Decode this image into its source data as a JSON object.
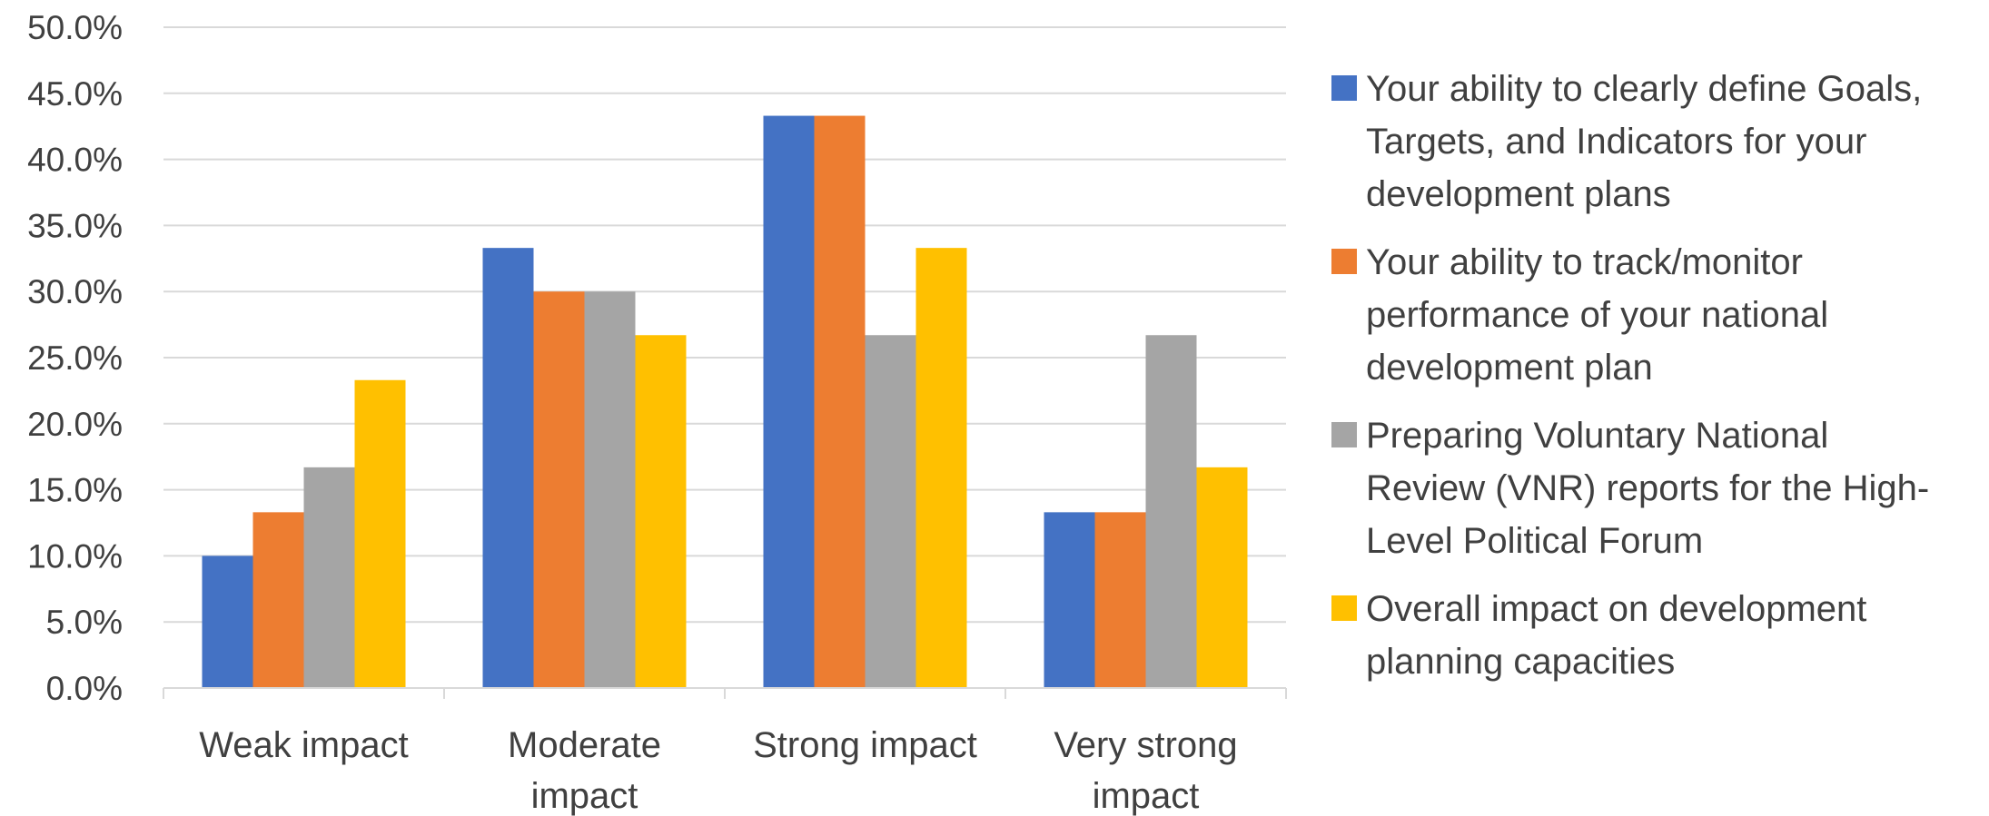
{
  "chart_data": {
    "type": "bar",
    "categories": [
      [
        "Weak impact"
      ],
      [
        "Moderate",
        "impact"
      ],
      [
        "Strong impact"
      ],
      [
        "Very strong",
        "impact"
      ]
    ],
    "series": [
      {
        "name": [
          "Your ability to clearly define Goals,",
          "Targets, and Indicators for your",
          "development plans"
        ],
        "color": "#4472C4",
        "values": [
          10.0,
          33.3,
          43.3,
          13.3
        ]
      },
      {
        "name": [
          "Your ability to track/monitor",
          "performance of your national",
          "development plan"
        ],
        "color": "#ED7D31",
        "values": [
          13.3,
          30.0,
          43.3,
          13.3
        ]
      },
      {
        "name": [
          "Preparing Voluntary National",
          "Review (VNR) reports for the High-",
          "Level Political Forum"
        ],
        "color": "#A5A5A5",
        "values": [
          16.7,
          30.0,
          26.7,
          26.7
        ]
      },
      {
        "name": [
          "Overall impact on development",
          "planning capacities"
        ],
        "color": "#FFC000",
        "values": [
          23.3,
          26.7,
          33.3,
          16.7
        ]
      }
    ],
    "y_ticks": [
      "0.0%",
      "5.0%",
      "10.0%",
      "15.0%",
      "20.0%",
      "25.0%",
      "30.0%",
      "35.0%",
      "40.0%",
      "45.0%",
      "50.0%"
    ],
    "ylim": [
      0,
      50
    ],
    "grid": true,
    "legend_position": "right",
    "gridline_color": "#D9D9D9",
    "axis_color": "#D9D9D9",
    "text_color": "#404040"
  }
}
